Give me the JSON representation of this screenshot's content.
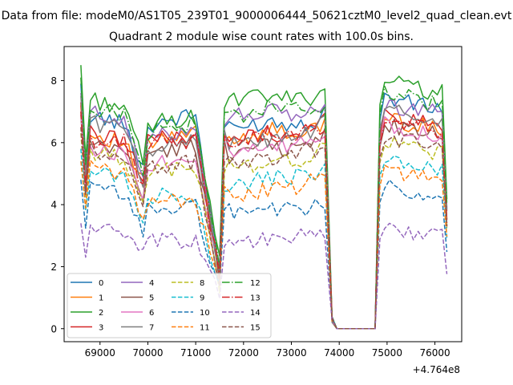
{
  "figure": {
    "suptitle": "Data from file: modeM0/AS1T05_239T01_9000006444_50621cztM0_level2_quad_clean.evt",
    "title": "Quadrant 2 module wise count rates with 100.0s bins."
  },
  "chart_data": {
    "type": "line",
    "title": "Quadrant 2 module wise count rates with 100.0s bins.",
    "xlabel": "",
    "ylabel": "",
    "x_offset_label": "+4.764e8",
    "xlim": [
      68250,
      76560
    ],
    "ylim": [
      -0.42,
      9.1
    ],
    "xticks": [
      {
        "value": 69000,
        "label": "69000"
      },
      {
        "value": 70000,
        "label": "70000"
      },
      {
        "value": 71000,
        "label": "71000"
      },
      {
        "value": 72000,
        "label": "72000"
      },
      {
        "value": 73000,
        "label": "73000"
      },
      {
        "value": 74000,
        "label": "74000"
      },
      {
        "value": 75000,
        "label": "75000"
      },
      {
        "value": 76000,
        "label": "76000"
      }
    ],
    "yticks": [
      {
        "value": 0,
        "label": "0"
      },
      {
        "value": 2,
        "label": "2"
      },
      {
        "value": 4,
        "label": "4"
      },
      {
        "value": 6,
        "label": "6"
      },
      {
        "value": 8,
        "label": "8"
      }
    ],
    "grid": false,
    "legend": {
      "placement": "lower-left",
      "columns": 4
    },
    "series": [
      {
        "name": "0",
        "color": "#1f77b4",
        "dash": "solid",
        "base": [
          7.0,
          6.8,
          6.6,
          5.2,
          6.5,
          6.7,
          6.9,
          1.8,
          6.6,
          6.4,
          6.5,
          6.7,
          6.6,
          6.7,
          7.3
        ],
        "hi": 7.9
      },
      {
        "name": "1",
        "color": "#ff7f0e",
        "dash": "solid",
        "base": [
          6.4,
          6.2,
          6.0,
          4.7,
          5.9,
          6.1,
          6.3,
          1.5,
          6.3,
          6.1,
          6.2,
          6.4,
          6.3,
          6.4,
          6.6
        ],
        "hi": 7.2
      },
      {
        "name": "2",
        "color": "#2ca02c",
        "dash": "solid",
        "base": [
          7.6,
          7.3,
          7.2,
          5.3,
          6.5,
          6.7,
          6.8,
          2.1,
          7.3,
          7.3,
          7.4,
          7.5,
          7.4,
          7.5,
          7.8
        ],
        "hi": 8.5
      },
      {
        "name": "3",
        "color": "#d62728",
        "dash": "solid",
        "base": [
          6.4,
          6.2,
          6.2,
          4.8,
          6.2,
          6.1,
          6.3,
          1.8,
          6.3,
          6.0,
          6.2,
          6.3,
          6.2,
          6.5,
          6.8
        ],
        "hi": 7.3
      },
      {
        "name": "4",
        "color": "#9467bd",
        "dash": "solid",
        "base": [
          7.1,
          6.9,
          6.8,
          4.9,
          6.1,
          6.2,
          6.6,
          1.9,
          6.8,
          6.8,
          6.9,
          7.0,
          6.9,
          7.0,
          7.2
        ],
        "hi": 7.6
      },
      {
        "name": "5",
        "color": "#8c564b",
        "dash": "solid",
        "base": [
          6.0,
          5.8,
          5.8,
          4.3,
          5.6,
          5.7,
          5.9,
          1.6,
          6.1,
          5.6,
          5.7,
          5.9,
          5.8,
          6.0,
          6.5
        ],
        "hi": 6.9
      },
      {
        "name": "6",
        "color": "#e377c2",
        "dash": "solid",
        "base": [
          6.0,
          5.7,
          5.7,
          4.4,
          5.3,
          5.4,
          5.6,
          1.5,
          6.0,
          5.8,
          5.6,
          5.8,
          5.9,
          6.1,
          6.4
        ],
        "hi": 7.0
      },
      {
        "name": "7",
        "color": "#7f7f7f",
        "dash": "solid",
        "base": [
          6.9,
          6.6,
          6.5,
          4.6,
          5.8,
          5.9,
          6.2,
          1.7,
          6.4,
          6.0,
          5.9,
          6.1,
          6.1,
          6.3,
          6.9
        ],
        "hi": 7.5
      },
      {
        "name": "8",
        "color": "#bcbd22",
        "dash": "dashed",
        "base": [
          5.9,
          5.6,
          5.5,
          4.3,
          5.0,
          5.1,
          5.2,
          1.4,
          5.1,
          5.2,
          5.2,
          5.4,
          5.4,
          5.6,
          5.9
        ],
        "hi": 6.3
      },
      {
        "name": "9",
        "color": "#17becf",
        "dash": "dashed",
        "base": [
          5.3,
          5.0,
          4.9,
          3.6,
          4.2,
          4.3,
          4.4,
          1.2,
          4.5,
          4.6,
          4.7,
          4.8,
          4.9,
          5.0,
          5.2
        ],
        "hi": 5.8
      },
      {
        "name": "10",
        "color": "#1f77b4",
        "dash": "dashed",
        "base": [
          4.5,
          4.5,
          4.3,
          3.2,
          3.8,
          3.9,
          3.9,
          1.3,
          3.7,
          3.8,
          3.8,
          3.9,
          3.8,
          3.9,
          4.1
        ],
        "hi": 4.8
      },
      {
        "name": "11",
        "color": "#ff7f0e",
        "dash": "dashed",
        "base": [
          5.4,
          5.1,
          5.0,
          3.7,
          4.2,
          4.1,
          4.2,
          1.3,
          4.4,
          4.3,
          4.3,
          4.5,
          4.5,
          4.8,
          5.0
        ],
        "hi": 5.4
      },
      {
        "name": "12",
        "color": "#2ca02c",
        "dash": "dashdot",
        "base": [
          7.3,
          7.1,
          6.9,
          5.1,
          6.3,
          6.5,
          6.6,
          2.0,
          7.0,
          6.8,
          6.9,
          7.1,
          7.0,
          7.1,
          7.4
        ],
        "hi": 8.1
      },
      {
        "name": "13",
        "color": "#d62728",
        "dash": "dashdot",
        "base": [
          6.2,
          6.0,
          6.0,
          4.6,
          6.0,
          6.0,
          6.1,
          1.7,
          6.2,
          6.1,
          6.1,
          6.3,
          6.2,
          6.4,
          6.6
        ],
        "hi": 7.0
      },
      {
        "name": "14",
        "color": "#9467bd",
        "dash": "dashed",
        "base": [
          3.2,
          3.3,
          3.0,
          2.3,
          2.8,
          2.8,
          2.8,
          1.2,
          2.8,
          2.9,
          2.8,
          2.9,
          2.9,
          3.0,
          3.1
        ],
        "hi": 3.4
      },
      {
        "name": "15",
        "color": "#8c564b",
        "dash": "dashed",
        "base": [
          6.0,
          5.6,
          5.5,
          4.1,
          5.3,
          5.2,
          5.4,
          1.5,
          5.5,
          5.3,
          5.3,
          5.5,
          5.6,
          5.8,
          6.1
        ],
        "hi": 6.5
      }
    ]
  }
}
